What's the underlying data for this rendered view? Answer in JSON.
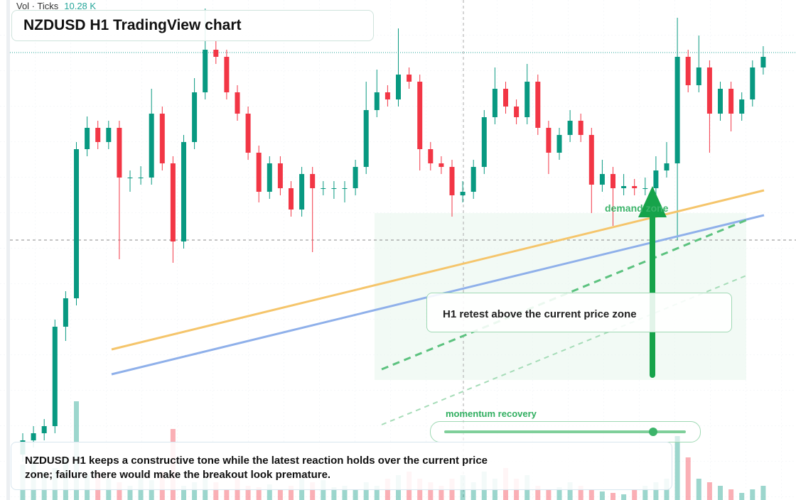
{
  "header": {
    "volume_label": "Vol · Ticks",
    "volume_value": "10.28 K",
    "title": "NZDUSD H1 TradingView chart"
  },
  "chart_data": {
    "type": "candlestick",
    "ylim": [
      0,
      704
    ],
    "volume_lim": [
      0,
      150
    ],
    "up_color": "#089981",
    "down_color": "#f23645",
    "open": [
      64,
      84,
      94,
      104,
      244,
      284,
      494,
      524,
      504,
      524,
      454,
      454,
      454,
      544,
      474,
      364,
      504,
      574,
      634,
      624,
      574,
      544,
      489,
      434,
      474,
      439,
      409,
      459,
      439,
      439,
      439,
      439,
      469,
      549,
      574,
      564,
      599,
      589,
      494,
      474,
      469,
      429,
      434,
      469,
      539,
      579,
      554,
      539,
      589,
      524,
      489,
      514,
      534,
      514,
      444,
      459,
      439,
      442,
      439,
      439,
      464,
      474,
      624,
      584,
      609,
      544,
      579,
      544,
      564,
      609
    ],
    "high": [
      94,
      104,
      114,
      254,
      294,
      504,
      540,
      534,
      534,
      534,
      464,
      470,
      579,
      554,
      484,
      514,
      594,
      692,
      646,
      634,
      584,
      554,
      499,
      484,
      484,
      449,
      469,
      469,
      449,
      449,
      449,
      479,
      589,
      606,
      584,
      664,
      609,
      599,
      504,
      484,
      479,
      449,
      479,
      549,
      609,
      589,
      564,
      614,
      599,
      534,
      524,
      549,
      544,
      524,
      479,
      469,
      459,
      452,
      454,
      484,
      504,
      679,
      634,
      654,
      619,
      589,
      589,
      574,
      619,
      639
    ],
    "low": [
      54,
      74,
      84,
      94,
      224,
      274,
      484,
      494,
      494,
      339,
      434,
      444,
      444,
      464,
      334,
      354,
      494,
      564,
      614,
      564,
      534,
      479,
      419,
      424,
      429,
      399,
      399,
      349,
      429,
      424,
      419,
      429,
      459,
      539,
      554,
      554,
      579,
      464,
      464,
      459,
      399,
      419,
      424,
      459,
      529,
      544,
      529,
      529,
      514,
      459,
      479,
      504,
      504,
      404,
      434,
      386,
      429,
      429,
      429,
      429,
      454,
      366,
      574,
      574,
      489,
      534,
      519,
      534,
      554,
      599
    ],
    "close": [
      84,
      94,
      104,
      244,
      284,
      494,
      524,
      504,
      524,
      454,
      454,
      454,
      544,
      474,
      364,
      504,
      574,
      634,
      624,
      574,
      544,
      489,
      434,
      474,
      439,
      409,
      459,
      439,
      439,
      439,
      439,
      469,
      549,
      574,
      564,
      599,
      589,
      494,
      474,
      469,
      429,
      434,
      469,
      539,
      579,
      554,
      539,
      589,
      524,
      489,
      514,
      534,
      514,
      444,
      459,
      439,
      442,
      439,
      439,
      464,
      474,
      624,
      584,
      609,
      544,
      579,
      544,
      564,
      609,
      624
    ],
    "volume": [
      50,
      55,
      40,
      45,
      60,
      139,
      35,
      40,
      30,
      25,
      20,
      30,
      28,
      40,
      100,
      20,
      25,
      30,
      25,
      15,
      30,
      20,
      18,
      22,
      15,
      20,
      30,
      25,
      28,
      18,
      20,
      15,
      25,
      20,
      30,
      35,
      40,
      30,
      25,
      20,
      30,
      35,
      25,
      40,
      30,
      45,
      30,
      35,
      20,
      15,
      18,
      25,
      20,
      15,
      12,
      10,
      8,
      15,
      20,
      25,
      30,
      90,
      60,
      30,
      25,
      20,
      15,
      10,
      15,
      20
    ]
  },
  "annotations": {
    "zone_label": "demand zone",
    "callout": "H1 retest above the current price zone",
    "momentum_label": "momentum recovery",
    "note": "NZDUSD H1 keeps a constructive tone while the latest reaction holds over the current price zone; failure there would make the breakout look premature."
  }
}
